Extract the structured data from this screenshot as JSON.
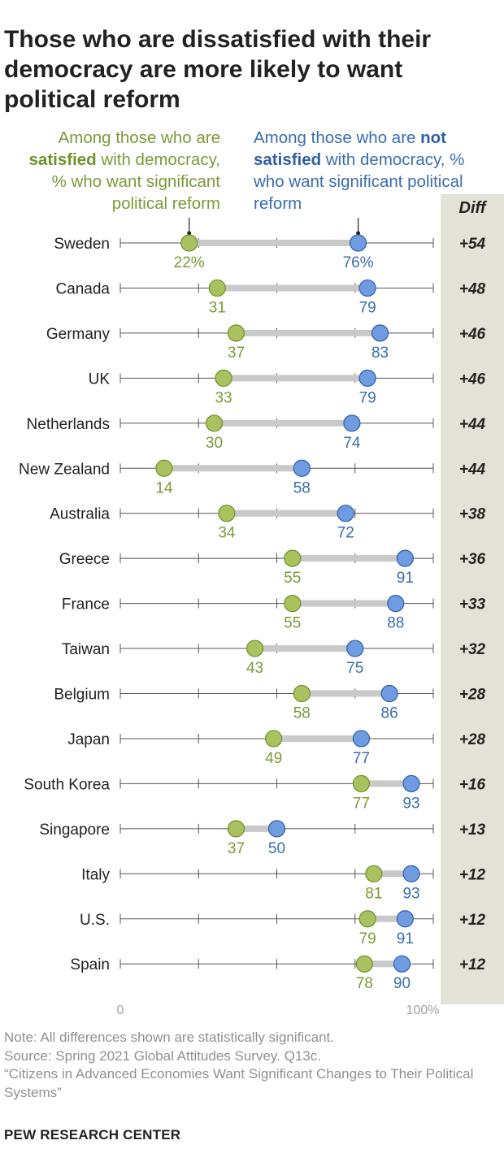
{
  "title": "Those who are dissatisfied with their democracy are more likely to want political reform",
  "legend": {
    "satisfied": {
      "prefix": "Among those who are",
      "bold": "satisfied",
      "suffix": "with democracy, % who want significant political reform",
      "color": "#a9c25f"
    },
    "not_satisfied": {
      "prefix": "Among those who are",
      "bold_1": "not",
      "bold_2": "satisfied",
      "suffix": "with democracy, % who want significant political reform",
      "color": "#6f9be0"
    }
  },
  "diff_header": "Diff",
  "chart_data": {
    "type": "dot-plot",
    "categories": [
      "Sweden",
      "Canada",
      "Germany",
      "UK",
      "Netherlands",
      "New Zealand",
      "Australia",
      "Greece",
      "France",
      "Taiwan",
      "Belgium",
      "Japan",
      "South Korea",
      "Singapore",
      "Italy",
      "U.S.",
      "Spain"
    ],
    "series": [
      {
        "name": "Among those who are satisfied with democracy",
        "values": [
          22,
          31,
          37,
          33,
          30,
          14,
          34,
          55,
          55,
          43,
          58,
          49,
          77,
          37,
          81,
          79,
          78
        ],
        "color": "#a9c25f"
      },
      {
        "name": "Among those who are not satisfied with democracy",
        "values": [
          76,
          79,
          83,
          79,
          74,
          58,
          72,
          91,
          88,
          75,
          86,
          77,
          93,
          50,
          93,
          91,
          90
        ],
        "color": "#6f9be0"
      }
    ],
    "diff": [
      "+54",
      "+48",
      "+46",
      "+46",
      "+44",
      "+44",
      "+38",
      "+36",
      "+33",
      "+32",
      "+28",
      "+28",
      "+16",
      "+13",
      "+12",
      "+12",
      "+12"
    ],
    "first_row_suffix": "%",
    "xlim": [
      0,
      100
    ],
    "x_ticks": [
      0,
      25,
      50,
      75,
      100
    ],
    "x_tick_labels": [
      "0",
      "100%"
    ]
  },
  "footnote": {
    "note": "Note: All differences shown are statistically significant.",
    "source": "Source: Spring 2021 Global Attitudes Survey. Q13c.",
    "report": "“Citizens in Advanced Economies Want Significant Changes to Their Political Systems”"
  },
  "brand": "PEW RESEARCH CENTER"
}
